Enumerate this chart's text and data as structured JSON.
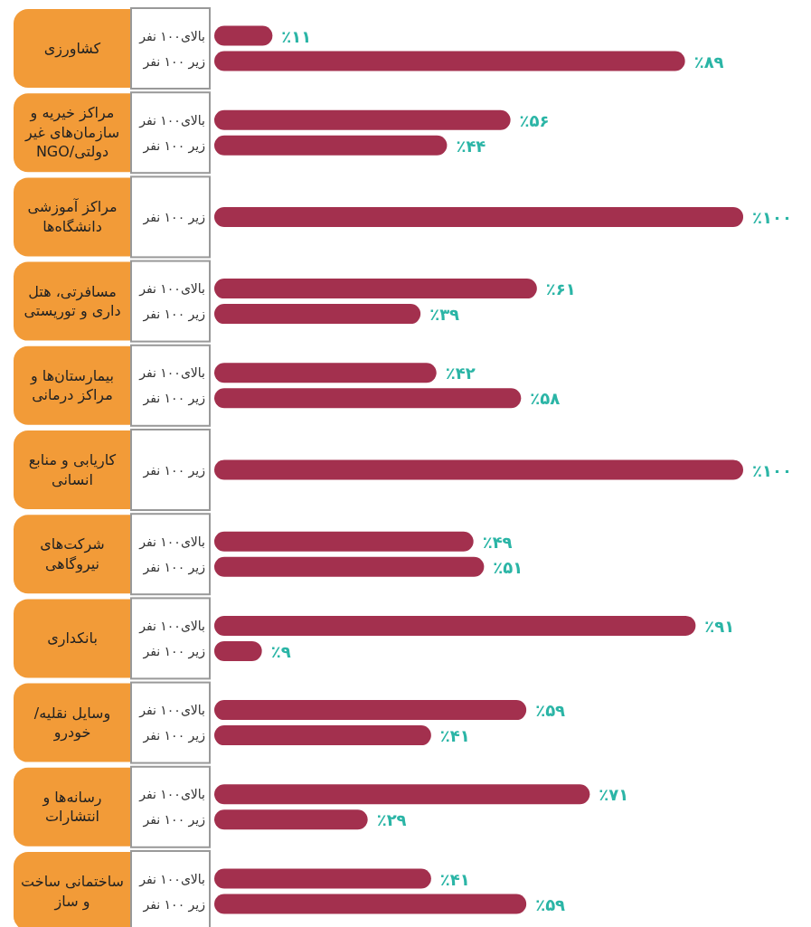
{
  "chart_data": {
    "type": "bar",
    "orientation": "horizontal",
    "xlim": [
      0,
      100
    ],
    "categories": [
      "کشاورزی",
      "مراکز خیریه و سازمان‌های غیر دولتی/NGO",
      "مراکز آموزشی دانشگاه‌ها",
      "مسافرتی، هتل داری و توریستی",
      "بیمارستان‌ها و مراکز درمانی",
      "کاریابی و منابع انسانی",
      "شرکت‌های نیروگاهی",
      "بانکداری",
      "وسایل نقلیه/ خودرو",
      "رسانه‌ها و انتشارات",
      "ساختمانی ساخت و ساز"
    ],
    "series": [
      {
        "name": "بالای۱۰۰ نفر",
        "color": "#a3304e",
        "values": [
          11,
          56,
          null,
          61,
          42,
          null,
          49,
          91,
          59,
          71,
          41
        ],
        "value_labels": [
          "٪۱۱",
          "٪۵۶",
          null,
          "٪۶۱",
          "٪۴۲",
          null,
          "٪۴۹",
          "٪۹۱",
          "٪۵۹",
          "٪۷۱",
          "٪۴۱"
        ]
      },
      {
        "name": "زیر ۱۰۰ نفر",
        "color": "#a3304e",
        "values": [
          89,
          44,
          100,
          39,
          58,
          100,
          51,
          9,
          41,
          29,
          59
        ],
        "value_labels": [
          "٪۸۹",
          "٪۴۴",
          "٪۱۰۰",
          "٪۳۹",
          "٪۵۸",
          "٪۱۰۰",
          "٪۵۱",
          "٪۹",
          "٪۴۱",
          "٪۲۹",
          "٪۵۹"
        ]
      }
    ]
  }
}
